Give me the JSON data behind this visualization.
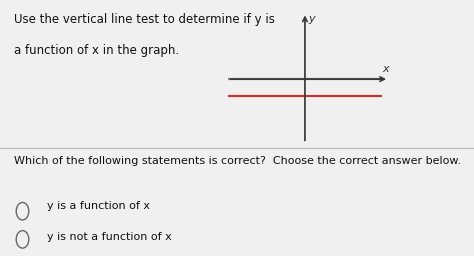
{
  "background_color": "#e8e8e8",
  "top_section_color": "#f0f0f0",
  "bottom_section_color": "#f0f0f0",
  "top_text_line1": "Use the vertical line test to determine if y is",
  "top_text_line2": "a function of x in the graph.",
  "question_text": "Which of the following statements is correct?  Choose the correct answer below.",
  "option1": "y is a function of x",
  "option2": "y is not a function of x",
  "axis_color": "#333333",
  "line1_color": "#888888",
  "line2_color": "#c0392b",
  "y_label": "y",
  "x_label": "x",
  "text_color": "#111111",
  "divider_color": "#bbbbbb",
  "circle_color": "#666666",
  "font_size_top": 8.5,
  "font_size_question": 8.0,
  "font_size_options": 8.0,
  "font_size_axis_label": 8.0
}
